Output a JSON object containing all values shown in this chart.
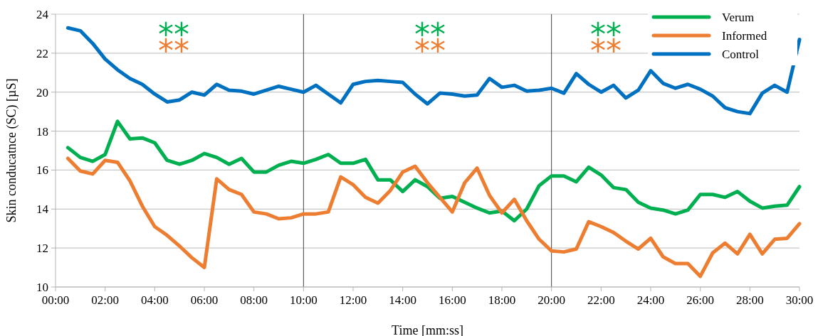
{
  "chart_data": {
    "type": "line",
    "xlabel": "Time [mm:ss]",
    "ylabel": "Skin conducatnce (SC) [µS]",
    "x": [
      0.5,
      1,
      1.5,
      2,
      2.5,
      3,
      3.5,
      4,
      4.5,
      5,
      5.5,
      6,
      6.5,
      7,
      7.5,
      8,
      8.5,
      9,
      9.5,
      10,
      10.5,
      11,
      11.5,
      12,
      12.5,
      13,
      13.5,
      14,
      14.5,
      15,
      15.5,
      16,
      16.5,
      17,
      17.5,
      18,
      18.5,
      19,
      19.5,
      20,
      20.5,
      21,
      21.5,
      22,
      22.5,
      23,
      23.5,
      24,
      24.5,
      25,
      25.5,
      26,
      26.5,
      27,
      27.5,
      28,
      28.5,
      29,
      29.5,
      30
    ],
    "series": [
      {
        "name": "Verum",
        "color": "#00b050",
        "values": [
          17.15,
          16.65,
          16.45,
          16.8,
          18.5,
          17.6,
          17.65,
          17.4,
          16.5,
          16.3,
          16.5,
          16.85,
          16.65,
          16.3,
          16.6,
          15.9,
          15.9,
          16.25,
          16.45,
          16.35,
          16.55,
          16.8,
          16.35,
          16.35,
          16.55,
          15.5,
          15.5,
          14.9,
          15.5,
          15.15,
          14.55,
          14.65,
          14.35,
          14.05,
          13.8,
          13.9,
          13.4,
          14.0,
          15.2,
          15.7,
          15.7,
          15.4,
          16.15,
          15.75,
          15.1,
          15.0,
          14.35,
          14.05,
          13.95,
          13.75,
          13.95,
          14.75,
          14.75,
          14.6,
          14.9,
          14.4,
          14.05,
          14.15,
          14.2,
          15.15
        ]
      },
      {
        "name": "Informed",
        "color": "#ed7d31",
        "values": [
          16.6,
          15.95,
          15.8,
          16.5,
          16.4,
          15.45,
          14.15,
          13.1,
          12.65,
          12.1,
          11.5,
          11.0,
          15.55,
          15.0,
          14.75,
          13.85,
          13.75,
          13.5,
          13.55,
          13.75,
          13.75,
          13.85,
          15.65,
          15.25,
          14.6,
          14.3,
          14.95,
          15.9,
          16.2,
          15.35,
          14.6,
          13.85,
          15.35,
          16.1,
          14.7,
          13.8,
          14.5,
          13.4,
          12.45,
          11.85,
          11.8,
          11.95,
          13.35,
          13.1,
          12.8,
          12.35,
          11.95,
          12.5,
          11.55,
          11.2,
          11.2,
          10.55,
          11.75,
          12.25,
          11.7,
          12.7,
          11.7,
          12.45,
          12.5,
          13.25
        ]
      },
      {
        "name": "Control",
        "color": "#0070c0",
        "values": [
          23.3,
          23.15,
          22.5,
          21.7,
          21.15,
          20.7,
          20.4,
          19.9,
          19.5,
          19.6,
          20.0,
          19.85,
          20.4,
          20.1,
          20.05,
          19.9,
          20.1,
          20.3,
          20.15,
          20.0,
          20.35,
          19.9,
          19.45,
          20.4,
          20.55,
          20.6,
          20.55,
          20.5,
          19.9,
          19.4,
          19.95,
          19.9,
          19.8,
          19.85,
          20.7,
          20.25,
          20.35,
          20.05,
          20.1,
          20.2,
          19.95,
          20.95,
          20.4,
          20.0,
          20.35,
          19.7,
          20.1,
          21.1,
          20.45,
          20.2,
          20.4,
          20.15,
          19.8,
          19.2,
          19.0,
          18.9,
          19.95,
          20.35,
          20.0,
          22.7
        ]
      }
    ],
    "xlim": [
      0,
      30
    ],
    "xticks": [
      {
        "value": 0,
        "label": "00:00"
      },
      {
        "value": 2,
        "label": "02:00"
      },
      {
        "value": 4,
        "label": "04:00"
      },
      {
        "value": 6,
        "label": "06:00"
      },
      {
        "value": 8,
        "label": "08:00"
      },
      {
        "value": 10,
        "label": "10:00"
      },
      {
        "value": 12,
        "label": "12:00"
      },
      {
        "value": 14,
        "label": "14:00"
      },
      {
        "value": 16,
        "label": "16:00"
      },
      {
        "value": 18,
        "label": "18:00"
      },
      {
        "value": 20,
        "label": "20:00"
      },
      {
        "value": 22,
        "label": "22:00"
      },
      {
        "value": 24,
        "label": "24:00"
      },
      {
        "value": 26,
        "label": "26:00"
      },
      {
        "value": 28,
        "label": "28:00"
      },
      {
        "value": 30,
        "label": "30:00"
      }
    ],
    "ylim": [
      10,
      24
    ],
    "yticks": [
      10,
      12,
      14,
      16,
      18,
      20,
      22,
      24
    ],
    "ref_lines": [
      {
        "axis": "x",
        "value": 10,
        "color": "#404040"
      },
      {
        "axis": "x",
        "value": 20,
        "color": "#404040"
      }
    ],
    "annotations": [
      "**",
      "**",
      "**",
      "**",
      "**",
      "**"
    ],
    "grid": "y",
    "legend": "top right",
    "line_style": "solid",
    "marker": "none"
  }
}
